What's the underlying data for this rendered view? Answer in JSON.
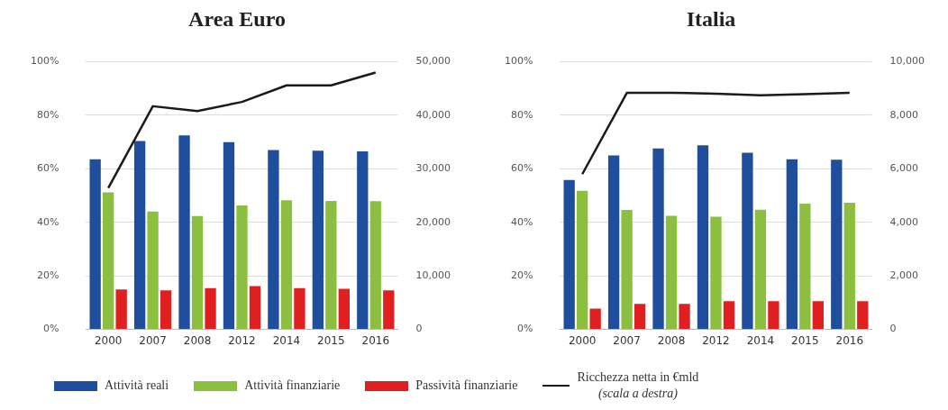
{
  "chart_data": [
    {
      "type": "bar",
      "title": "Area Euro",
      "categories": [
        "2000",
        "2007",
        "2008",
        "2012",
        "2014",
        "2015",
        "2016"
      ],
      "series": [
        {
          "name": "Attività reali",
          "color": "#1f4e9c",
          "values": [
            63.6,
            70.4,
            72.5,
            70,
            67,
            66.8,
            66.5
          ]
        },
        {
          "name": "Attività finanziarie",
          "color": "#8cbf3f",
          "values": [
            51.2,
            44,
            42.3,
            46.3,
            48.2,
            48,
            47.9
          ]
        },
        {
          "name": "Passività finanziarie",
          "color": "#e02020",
          "values": [
            14.9,
            14.5,
            15.4,
            16.1,
            15.4,
            15.1,
            14.5
          ]
        },
        {
          "name": "Ricchezza netta in €mld",
          "color": "#1a1a1a",
          "type": "line",
          "axis": "y2",
          "values": [
            26400,
            41700,
            40800,
            42500,
            45600,
            45600,
            48000
          ]
        }
      ],
      "ylim": [
        0,
        100
      ],
      "yticks": [
        {
          "value": 0,
          "label": "0%"
        },
        {
          "value": 20,
          "label": "20%"
        },
        {
          "value": 40,
          "label": "40%"
        },
        {
          "value": 60,
          "label": "60%"
        },
        {
          "value": 80,
          "label": "80%"
        },
        {
          "value": 100,
          "label": "100%"
        }
      ],
      "y2lim": [
        0,
        50000
      ],
      "y2ticks": [
        0,
        {
          "value": 10000,
          "label": "10,000"
        },
        {
          "value": 20000,
          "label": "20,000"
        },
        {
          "value": 30000,
          "label": "30,000"
        },
        {
          "value": 40000,
          "label": "40,000"
        },
        {
          "value": 50000,
          "label": "50,000"
        }
      ],
      "grid": "y",
      "legend": "bottom",
      "marker": "none",
      "annotations": [
        "(scala a destra)"
      ]
    },
    {
      "type": "bar",
      "title": "Italia",
      "categories": [
        "2000",
        "2007",
        "2008",
        "2012",
        "2014",
        "2015",
        "2016"
      ],
      "series": [
        {
          "color": "#1f4e9c",
          "values": [
            55.8,
            65,
            67.6,
            68.8,
            66,
            63.6,
            63.4
          ]
        },
        {
          "color": "#8cbf3f",
          "values": [
            51.8,
            44.6,
            42.4,
            42.1,
            44.7,
            47,
            47.3
          ]
        },
        {
          "color": "#e02020",
          "values": [
            7.7,
            9.5,
            9.5,
            10.5,
            10.5,
            10.5,
            10.5
          ]
        },
        {
          "color": "#1a1a1a",
          "type": "line",
          "axis": "y2",
          "values": [
            5800,
            8840,
            8840,
            8810,
            8750,
            8790,
            8840
          ]
        }
      ],
      "ylim": [
        0,
        100
      ],
      "yticks": [
        {
          "value": 0,
          "label": "0%"
        },
        {
          "value": 20,
          "label": "20%"
        },
        {
          "value": 40,
          "label": "40%"
        },
        {
          "value": 60,
          "label": "60%"
        },
        {
          "value": 80,
          "label": "80%"
        },
        {
          "value": 100,
          "label": "100%"
        }
      ],
      "y2lim": [
        0,
        10000
      ],
      "y2ticks": [
        0,
        {
          "value": 2000,
          "label": "2,000"
        },
        {
          "value": 4000,
          "label": "4,000"
        },
        {
          "value": 6000,
          "label": "6,000"
        },
        {
          "value": 8000,
          "label": "8,000"
        },
        {
          "value": 10000,
          "label": "10,000"
        }
      ],
      "grid": "y",
      "marker": "none"
    }
  ]
}
